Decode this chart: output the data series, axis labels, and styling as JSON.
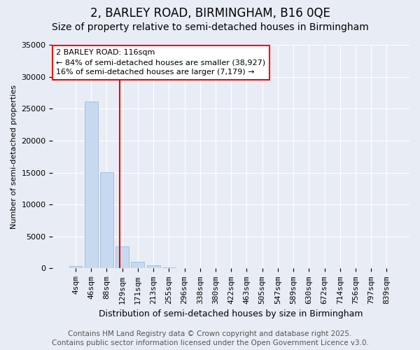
{
  "title": "2, BARLEY ROAD, BIRMINGHAM, B16 0QE",
  "subtitle": "Size of property relative to semi-detached houses in Birmingham",
  "xlabel": "Distribution of semi-detached houses by size in Birmingham",
  "ylabel": "Number of semi-detached properties",
  "categories": [
    "4sqm",
    "46sqm",
    "88sqm",
    "129sqm",
    "171sqm",
    "213sqm",
    "255sqm",
    "296sqm",
    "338sqm",
    "380sqm",
    "422sqm",
    "463sqm",
    "505sqm",
    "547sqm",
    "589sqm",
    "630sqm",
    "672sqm",
    "714sqm",
    "756sqm",
    "797sqm",
    "839sqm"
  ],
  "values": [
    400,
    26100,
    15100,
    3400,
    1050,
    450,
    150,
    50,
    0,
    0,
    0,
    0,
    0,
    0,
    0,
    0,
    0,
    0,
    0,
    0,
    0
  ],
  "bar_color": "#c6d9f0",
  "bar_edge_color": "#a0bcd8",
  "vline_x_index": 2.82,
  "vline_color": "red",
  "annotation_title": "2 BARLEY ROAD: 116sqm",
  "annotation_line1": "← 84% of semi-detached houses are smaller (38,927)",
  "annotation_line2": "16% of semi-detached houses are larger (7,179) →",
  "ylim": [
    0,
    35000
  ],
  "yticks": [
    0,
    5000,
    10000,
    15000,
    20000,
    25000,
    30000,
    35000
  ],
  "background_color": "#e8edf5",
  "plot_bg_color": "#e8edf5",
  "footer1": "Contains HM Land Registry data © Crown copyright and database right 2025.",
  "footer2": "Contains public sector information licensed under the Open Government Licence v3.0.",
  "title_fontsize": 12,
  "subtitle_fontsize": 10,
  "footer_fontsize": 7.5,
  "grid_color": "#ffffff",
  "tick_fontsize": 8,
  "ylabel_fontsize": 8,
  "xlabel_fontsize": 9
}
